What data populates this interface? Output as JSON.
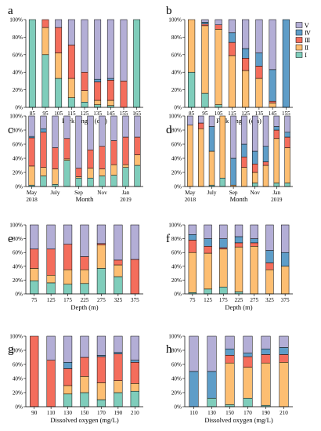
{
  "chart_data": {
    "type": "bar",
    "stacked": "percent",
    "colors": {
      "I": "#7fcdbb",
      "II": "#fdbe72",
      "III": "#f46d5c",
      "IV": "#5e9dc8",
      "V": "#b3aed6"
    },
    "legend": {
      "placement": "top-right of panel b",
      "entries": [
        {
          "key": "V",
          "label": "Ⅴ"
        },
        {
          "key": "IV",
          "label": "Ⅳ"
        },
        {
          "key": "III",
          "label": "Ⅲ"
        },
        {
          "key": "II",
          "label": "Ⅱ"
        },
        {
          "key": "I",
          "label": "Ⅰ"
        }
      ]
    },
    "ytick_labels": [
      "0%",
      "20%",
      "40%",
      "60%",
      "80%",
      "100%"
    ],
    "panels": [
      {
        "letter": "a",
        "xlabel": "Fork length (cm)",
        "xticks": [
          "85",
          "95",
          "105",
          "115",
          "125",
          "135",
          "145",
          "155",
          "165"
        ],
        "bars": [
          {
            "I": 100,
            "II": 0,
            "III": 0,
            "IV": 0,
            "V": 0
          },
          {
            "I": 60,
            "II": 31,
            "III": 9,
            "IV": 0,
            "V": 0
          },
          {
            "I": 33,
            "II": 29,
            "III": 29,
            "IV": 0,
            "V": 9
          },
          {
            "I": 11,
            "II": 22,
            "III": 38,
            "IV": 0,
            "V": 29
          },
          {
            "I": 6,
            "II": 13,
            "III": 21,
            "IV": 0,
            "V": 60
          },
          {
            "I": 3,
            "II": 5,
            "III": 21,
            "IV": 3,
            "V": 68
          },
          {
            "I": 2,
            "II": 6,
            "III": 23,
            "IV": 2,
            "V": 67
          },
          {
            "I": 0,
            "II": 0,
            "III": 30,
            "IV": 0,
            "V": 70
          },
          {
            "I": 100,
            "II": 0,
            "III": 0,
            "IV": 0,
            "V": 0
          }
        ]
      },
      {
        "letter": "b",
        "xlabel": "Fork length (cm)",
        "xticks": [
          "85",
          "95",
          "105",
          "115",
          "125",
          "135",
          "145",
          "155"
        ],
        "bars": [
          {
            "I": 40,
            "II": 60,
            "III": 0,
            "IV": 0,
            "V": 0
          },
          {
            "I": 16,
            "II": 77,
            "III": 2,
            "IV": 2,
            "V": 3
          },
          {
            "I": 3,
            "II": 86,
            "III": 5,
            "IV": 0,
            "V": 6
          },
          {
            "I": 0,
            "II": 59,
            "III": 15,
            "IV": 11,
            "V": 15
          },
          {
            "I": 0,
            "II": 42,
            "III": 14,
            "IV": 11,
            "V": 33
          },
          {
            "I": 0,
            "II": 33,
            "III": 14,
            "IV": 15,
            "V": 38
          },
          {
            "I": 0,
            "II": 5,
            "III": 2,
            "IV": 36,
            "V": 57
          },
          {
            "I": 0,
            "II": 0,
            "III": 0,
            "IV": 100,
            "V": 0
          }
        ]
      },
      {
        "letter": "c",
        "xlabel": "Month",
        "xticks": [
          "May",
          "July",
          "Sep",
          "Nov",
          "Jan"
        ],
        "xticks2": [
          "2018",
          "2019"
        ],
        "bars": [
          {
            "I": 2,
            "II": 27,
            "III": 40,
            "IV": 2,
            "V": 29
          },
          {
            "I": 15,
            "II": 12,
            "III": 50,
            "IV": 5,
            "V": 18
          },
          {
            "I": 3,
            "II": 22,
            "III": 30,
            "IV": 0,
            "V": 45
          },
          {
            "I": 37,
            "II": 2,
            "III": 29,
            "IV": 0,
            "V": 32
          },
          {
            "I": 12,
            "II": 2,
            "III": 12,
            "IV": 0,
            "V": 74
          },
          {
            "I": 12,
            "II": 14,
            "III": 26,
            "IV": 0,
            "V": 48
          },
          {
            "I": 15,
            "II": 10,
            "III": 32,
            "IV": 0,
            "V": 43
          },
          {
            "I": 16,
            "II": 15,
            "III": 34,
            "IV": 0,
            "V": 35
          },
          {
            "I": 27,
            "II": 4,
            "III": 39,
            "IV": 0,
            "V": 30
          },
          {
            "I": 30,
            "II": 15,
            "III": 25,
            "IV": 0,
            "V": 30
          }
        ]
      },
      {
        "letter": "d",
        "xlabel": "Month",
        "xticks": [
          "May",
          "July",
          "Sep",
          "Nov",
          "Jan"
        ],
        "xticks2": [
          "2018",
          "2019"
        ],
        "bars": [
          {
            "I": 0,
            "II": 87,
            "III": 0,
            "IV": 0,
            "V": 13
          },
          {
            "I": 0,
            "II": 82,
            "III": 8,
            "IV": 0,
            "V": 10
          },
          {
            "I": 2,
            "II": 48,
            "III": 0,
            "IV": 35,
            "V": 15
          },
          {
            "I": 12,
            "II": 88,
            "III": 0,
            "IV": 0,
            "V": 0
          },
          {
            "I": 0,
            "II": 2,
            "III": 0,
            "IV": 38,
            "V": 60
          },
          {
            "I": 0,
            "II": 27,
            "III": 15,
            "IV": 18,
            "V": 40
          },
          {
            "I": 5,
            "II": 15,
            "III": 12,
            "IV": 18,
            "V": 50
          },
          {
            "I": 0,
            "II": 30,
            "III": 5,
            "IV": 22,
            "V": 43
          },
          {
            "I": 5,
            "II": 63,
            "III": 12,
            "IV": 5,
            "V": 15
          },
          {
            "I": 5,
            "II": 50,
            "III": 15,
            "IV": 7,
            "V": 23
          }
        ]
      },
      {
        "letter": "e",
        "xlabel": "Depth (m)",
        "xticks": [
          "75",
          "125",
          "175",
          "225",
          "275",
          "325",
          "375"
        ],
        "bars": [
          {
            "I": 19,
            "II": 18,
            "III": 28,
            "IV": 0,
            "V": 35
          },
          {
            "I": 16,
            "II": 11,
            "III": 38,
            "IV": 0,
            "V": 35
          },
          {
            "I": 14,
            "II": 21,
            "III": 37,
            "IV": 0,
            "V": 28
          },
          {
            "I": 15,
            "II": 20,
            "III": 19,
            "IV": 0,
            "V": 46
          },
          {
            "I": 37,
            "II": 34,
            "III": 2,
            "IV": 0,
            "V": 27
          },
          {
            "I": 25,
            "II": 17,
            "III": 7,
            "IV": 0,
            "V": 51
          },
          {
            "I": 0,
            "II": 0,
            "III": 50,
            "IV": 0,
            "V": 50
          }
        ]
      },
      {
        "letter": "f",
        "xlabel": "Depth (m)",
        "xticks": [
          "75",
          "125",
          "175",
          "225",
          "275",
          "325",
          "375"
        ],
        "bars": [
          {
            "I": 2,
            "II": 58,
            "III": 18,
            "IV": 8,
            "V": 14
          },
          {
            "I": 7,
            "II": 52,
            "III": 10,
            "IV": 11,
            "V": 20
          },
          {
            "I": 10,
            "II": 55,
            "III": 2,
            "IV": 13,
            "V": 20
          },
          {
            "I": 3,
            "II": 65,
            "III": 6,
            "IV": 9,
            "V": 17
          },
          {
            "I": 0,
            "II": 69,
            "III": 5,
            "IV": 6,
            "V": 20
          },
          {
            "I": 0,
            "II": 35,
            "III": 10,
            "IV": 18,
            "V": 37
          },
          {
            "I": 0,
            "II": 40,
            "III": 0,
            "IV": 20,
            "V": 40
          }
        ]
      },
      {
        "letter": "g",
        "xlabel": "Dissolved oxygen (mg/L)",
        "xticks": [
          "90",
          "110",
          "130",
          "150",
          "170",
          "190",
          "210"
        ],
        "bars": [
          {
            "I": 0,
            "II": 0,
            "III": 100,
            "IV": 0,
            "V": 0
          },
          {
            "I": 0,
            "II": 0,
            "III": 66,
            "IV": 0,
            "V": 34
          },
          {
            "I": 18,
            "II": 12,
            "III": 24,
            "IV": 9,
            "V": 37
          },
          {
            "I": 20,
            "II": 23,
            "III": 27,
            "IV": 0,
            "V": 30
          },
          {
            "I": 10,
            "II": 24,
            "III": 37,
            "IV": 2,
            "V": 27
          },
          {
            "I": 20,
            "II": 17,
            "III": 38,
            "IV": 2,
            "V": 23
          },
          {
            "I": 22,
            "II": 11,
            "III": 30,
            "IV": 3,
            "V": 34
          }
        ]
      },
      {
        "letter": "h",
        "xlabel": "Dissolved oxygen (mg/L)",
        "xticks": [
          "110",
          "130",
          "150",
          "170",
          "190",
          "210"
        ],
        "bars": [
          {
            "I": 0,
            "II": 0,
            "III": 0,
            "IV": 50,
            "V": 50
          },
          {
            "I": 12,
            "II": 0,
            "III": 0,
            "IV": 38,
            "V": 50
          },
          {
            "I": 3,
            "II": 59,
            "III": 11,
            "IV": 9,
            "V": 18
          },
          {
            "I": 12,
            "II": 44,
            "III": 15,
            "IV": 5,
            "V": 24
          },
          {
            "I": 2,
            "II": 60,
            "III": 12,
            "IV": 8,
            "V": 18
          },
          {
            "I": 0,
            "II": 63,
            "III": 11,
            "IV": 10,
            "V": 16
          }
        ]
      }
    ]
  }
}
